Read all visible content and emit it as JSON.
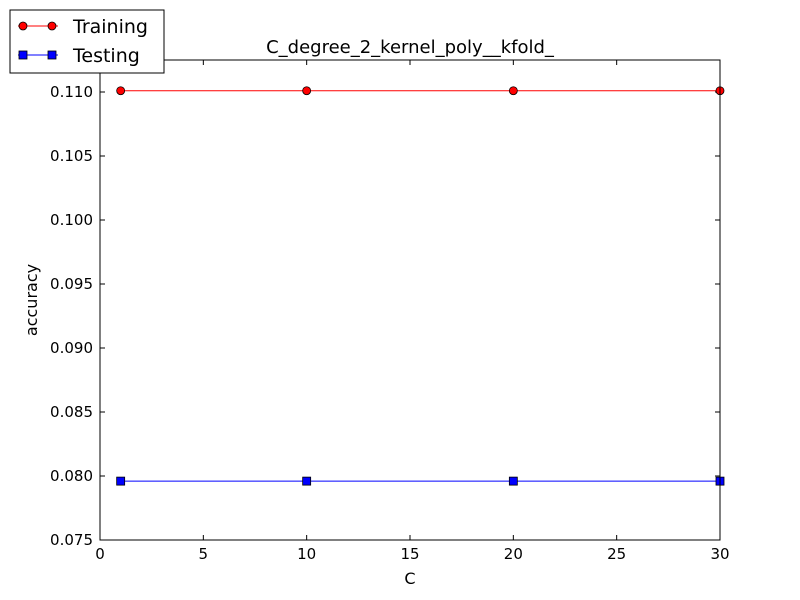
{
  "chart_data": {
    "type": "line",
    "title": "C_degree_2_kernel_poly__kfold_",
    "xlabel": "C",
    "ylabel": "accuracy",
    "xlim": [
      0,
      30
    ],
    "ylim": [
      0.075,
      0.1125
    ],
    "xticks": [
      0,
      5,
      10,
      15,
      20,
      25,
      30
    ],
    "xtick_labels": [
      "0",
      "5",
      "10",
      "15",
      "20",
      "25",
      "30"
    ],
    "yticks": [
      0.075,
      0.08,
      0.085,
      0.09,
      0.095,
      0.1,
      0.105,
      0.11
    ],
    "ytick_labels": [
      "0.075",
      "0.080",
      "0.085",
      "0.090",
      "0.095",
      "0.100",
      "0.105",
      "0.110"
    ],
    "grid": false,
    "legend_position": "top-left, outside the axes",
    "x": [
      1,
      10,
      20,
      30
    ],
    "series": [
      {
        "name": "Training",
        "values": [
          0.1101,
          0.1101,
          0.1101,
          0.1101
        ],
        "color": "#ff0000",
        "marker": "circle"
      },
      {
        "name": "Testing",
        "values": [
          0.0796,
          0.0796,
          0.0796,
          0.0796
        ],
        "color": "#0000ff",
        "marker": "square"
      }
    ]
  }
}
